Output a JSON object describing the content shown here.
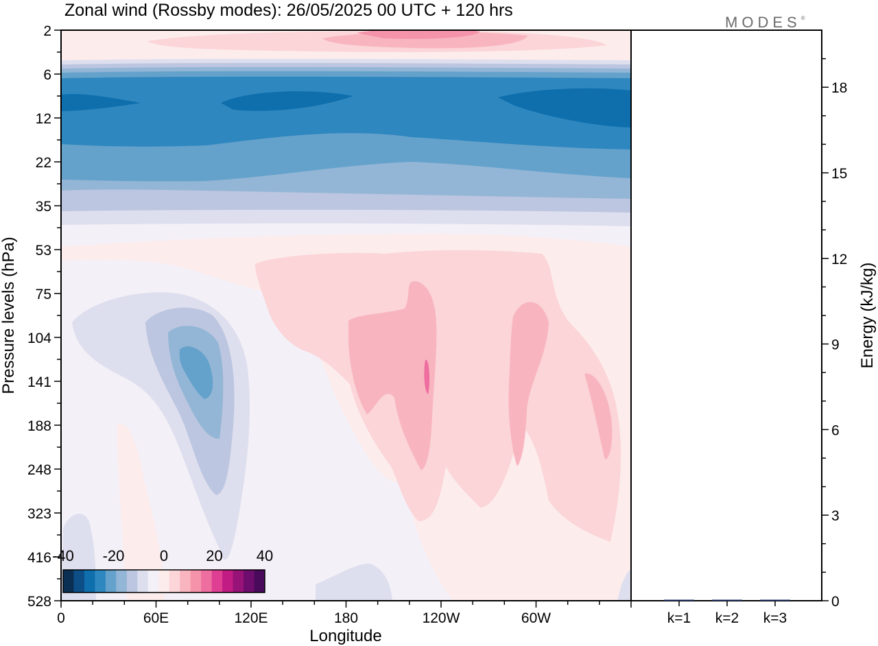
{
  "chart_data": [
    {
      "type": "heatmap",
      "title": "Zonal wind (Rossby modes):  26/05/2025  00 UTC  + 120 hrs",
      "xlabel": "Longitude",
      "ylabel": "Pressure levels (hPa)",
      "x_ticks": [
        "0",
        "60E",
        "120E",
        "180",
        "120W",
        "60W"
      ],
      "y_ticks": [
        "2",
        "6",
        "12",
        "22",
        "35",
        "53",
        "75",
        "104",
        "141",
        "188",
        "248",
        "323",
        "416",
        "528"
      ],
      "colorbar": {
        "tick_labels": [
          "-40",
          "-20",
          "0",
          "20",
          "40"
        ],
        "range": [
          -40,
          40
        ],
        "colors": [
          "#0b2f52",
          "#0d4e86",
          "#0e6fac",
          "#2f87bf",
          "#64a2cb",
          "#94b6d6",
          "#bcc6e0",
          "#dedfee",
          "#f4f0f7",
          "#fdecec",
          "#fbd5d8",
          "#f8b5c0",
          "#f593aa",
          "#ef6ea0",
          "#de3f93",
          "#c11c84",
          "#971377",
          "#6e0d6e",
          "#4a0a5c"
        ]
      }
    },
    {
      "type": "bar",
      "categories": [
        "k=1",
        "k=2",
        "k=3"
      ],
      "values": [
        0.02,
        0.01,
        0.01
      ],
      "ylabel": "Energy (kJ/kg)",
      "ylim": [
        0,
        20
      ],
      "y_ticks": [
        "0",
        "3",
        "6",
        "9",
        "12",
        "15",
        "18"
      ],
      "bar_color": "#1a2f6b"
    }
  ],
  "logo_text": "MODES",
  "logo_mark": "®"
}
